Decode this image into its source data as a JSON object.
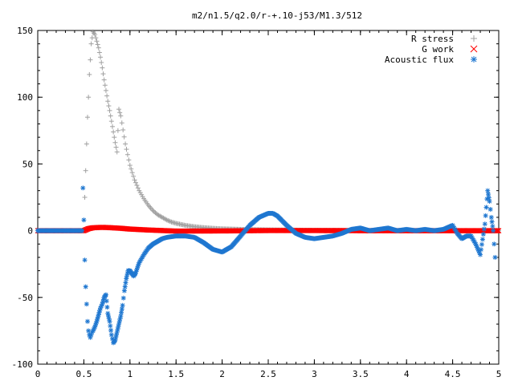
{
  "chart_data": {
    "type": "scatter",
    "title": "m2/n1.5/q2.0/r-+.10-j53/M1.3/512",
    "xlabel": "",
    "ylabel": "",
    "xlim": [
      0,
      5
    ],
    "ylim": [
      -100,
      150
    ],
    "x_ticks": [
      "0",
      "0.5",
      "1",
      "1.5",
      "2",
      "2.5",
      "3",
      "3.5",
      "4",
      "4.5",
      "5"
    ],
    "y_ticks": [
      "150",
      "100",
      "50",
      "0",
      "-50",
      "-100"
    ],
    "grid": false,
    "legend_position": "top-right",
    "series": [
      {
        "name": "R stress",
        "marker": "plus",
        "color": "#a0a0a0",
        "x": [
          0.51,
          0.52,
          0.53,
          0.54,
          0.55,
          0.56,
          0.57,
          0.58,
          0.6,
          0.62,
          0.64,
          0.66,
          0.68,
          0.7,
          0.72,
          0.74,
          0.76,
          0.78,
          0.8,
          0.82,
          0.84,
          0.86,
          0.88,
          0.9,
          0.95,
          1.0,
          1.05,
          1.1,
          1.15,
          1.2,
          1.25,
          1.3,
          1.35,
          1.4,
          1.45,
          1.5,
          1.6,
          1.7,
          1.8,
          1.9,
          2.0,
          2.2,
          2.5,
          3.0,
          3.5,
          4.0,
          4.5,
          5.0
        ],
        "y": [
          25,
          45,
          65,
          85,
          100,
          117,
          128,
          140,
          149,
          147,
          142,
          137,
          130,
          122,
          113,
          105,
          97,
          90,
          82,
          74,
          66,
          59,
          91,
          86,
          65,
          49,
          38,
          30,
          24,
          19,
          15,
          12,
          10,
          8,
          6.5,
          5.5,
          4,
          3,
          2.3,
          1.8,
          1.4,
          1,
          0.6,
          0.3,
          0.2,
          0.1,
          0.1,
          0
        ]
      },
      {
        "name": "G work",
        "marker": "x",
        "color": "#ff0000",
        "x": [
          0,
          0.5,
          0.55,
          0.6,
          0.7,
          0.8,
          0.9,
          1.0,
          1.2,
          1.5,
          2.0,
          2.5,
          3.0,
          3.5,
          4.0,
          4.5,
          5.0
        ],
        "y": [
          0,
          0,
          1.5,
          2.2,
          2.5,
          2.2,
          1.8,
          1.2,
          0.5,
          -0.3,
          -0.2,
          0.1,
          0.1,
          0,
          0,
          0,
          0
        ]
      },
      {
        "name": "Acoustic flux",
        "marker": "star",
        "color": "#1f77d0",
        "x": [
          0,
          0.1,
          0.2,
          0.3,
          0.4,
          0.48,
          0.49,
          0.5,
          0.51,
          0.52,
          0.53,
          0.54,
          0.55,
          0.56,
          0.57,
          0.58,
          0.59,
          0.6,
          0.62,
          0.64,
          0.66,
          0.68,
          0.7,
          0.72,
          0.74,
          0.76,
          0.78,
          0.8,
          0.82,
          0.84,
          0.86,
          0.88,
          0.9,
          0.92,
          0.94,
          0.96,
          0.98,
          1.0,
          1.02,
          1.04,
          1.06,
          1.08,
          1.1,
          1.15,
          1.2,
          1.25,
          1.3,
          1.35,
          1.4,
          1.5,
          1.6,
          1.7,
          1.8,
          1.9,
          2.0,
          2.1,
          2.2,
          2.3,
          2.4,
          2.5,
          2.55,
          2.6,
          2.7,
          2.8,
          2.9,
          3.0,
          3.1,
          3.2,
          3.3,
          3.4,
          3.5,
          3.6,
          3.7,
          3.8,
          3.9,
          4.0,
          4.1,
          4.2,
          4.3,
          4.4,
          4.5,
          4.55,
          4.6,
          4.65,
          4.7,
          4.75,
          4.8,
          4.85,
          4.88,
          4.9,
          4.92,
          4.94,
          4.96
        ],
        "y": [
          0,
          0,
          0,
          0,
          0,
          0,
          32,
          8,
          -22,
          -42,
          -55,
          -68,
          -75,
          -78,
          -80,
          -78,
          -76,
          -75,
          -72,
          -68,
          -63,
          -58,
          -55,
          -50,
          -48,
          -62,
          -68,
          -78,
          -84,
          -82,
          -76,
          -70,
          -64,
          -56,
          -45,
          -36,
          -30,
          -30,
          -32,
          -34,
          -32,
          -28,
          -24,
          -18,
          -13,
          -10,
          -8,
          -6,
          -5,
          -4,
          -4,
          -5,
          -9,
          -14,
          -16,
          -12,
          -4,
          4,
          10,
          13,
          13,
          11,
          4,
          -2,
          -5,
          -6,
          -5,
          -4,
          -2,
          1,
          2,
          0,
          1,
          2,
          0,
          1,
          0,
          1,
          0,
          1,
          4,
          -2,
          -6,
          -4,
          -4,
          -10,
          -18,
          5,
          30,
          22,
          10,
          0,
          -20
        ]
      }
    ]
  }
}
